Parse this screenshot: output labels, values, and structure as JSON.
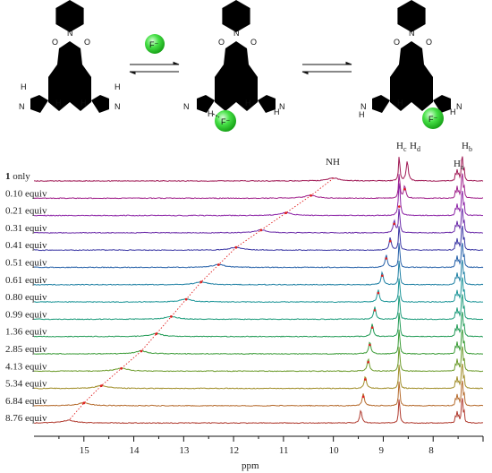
{
  "header": {
    "fluoride_symbol": "F⁻",
    "atoms": {
      "oxygen": "O",
      "nitrogen": "N",
      "hydrogen": "H",
      "fluorine": "F⁻"
    }
  },
  "spectrum": {
    "xlabel": "ppm",
    "x_ticks": [
      15,
      14,
      13,
      12,
      11,
      10,
      9,
      8
    ],
    "peak_labels": {
      "nh": "NH",
      "hc": "H",
      "hc_sub": "c",
      "hd": "H",
      "hd_sub": "d",
      "ha": "H",
      "ha_sub": "a",
      "hb": "H",
      "hb_sub": "b"
    },
    "rows": [
      {
        "bold": "1",
        "rest": " only",
        "color": "#a01a55",
        "nh": 10.0,
        "hd": 8.52
      },
      {
        "bold": "",
        "rest": "0.10 equiv",
        "color": "#a0208a",
        "nh": 10.45,
        "hd": 8.57
      },
      {
        "bold": "",
        "rest": "0.21 equiv",
        "color": "#8c23a6",
        "nh": 10.95,
        "hd": 8.68
      },
      {
        "bold": "",
        "rest": "0.31 equiv",
        "color": "#6a2aa8",
        "nh": 11.45,
        "hd": 8.78
      },
      {
        "bold": "",
        "rest": "0.41 equiv",
        "color": "#3a36a4",
        "nh": 11.95,
        "hd": 8.86
      },
      {
        "bold": "",
        "rest": "0.51 equiv",
        "color": "#2560a8",
        "nh": 12.3,
        "hd": 8.94
      },
      {
        "bold": "",
        "rest": "0.61 equiv",
        "color": "#1d7fa3",
        "nh": 12.65,
        "hd": 9.02
      },
      {
        "bold": "",
        "rest": "0.80 equiv",
        "color": "#1a9497",
        "nh": 12.95,
        "hd": 9.1
      },
      {
        "bold": "",
        "rest": "0.99 equiv",
        "color": "#1c9b7a",
        "nh": 13.25,
        "hd": 9.17
      },
      {
        "bold": "",
        "rest": "1.36 equiv",
        "color": "#229b56",
        "nh": 13.55,
        "hd": 9.22
      },
      {
        "bold": "",
        "rest": "2.85 equiv",
        "color": "#3a9b36",
        "nh": 13.85,
        "hd": 9.27
      },
      {
        "bold": "",
        "rest": "4.13 equiv",
        "color": "#6b9a2a",
        "nh": 14.25,
        "hd": 9.3
      },
      {
        "bold": "",
        "rest": "5.34 equiv",
        "color": "#a08d28",
        "nh": 14.65,
        "hd": 9.36
      },
      {
        "bold": "",
        "rest": "6.84 equiv",
        "color": "#b56a2c",
        "nh": 15.0,
        "hd": 9.4
      },
      {
        "bold": "",
        "rest": "8.76 equiv",
        "color": "#b03a2e",
        "nh": 15.3,
        "hd": 9.45
      }
    ]
  }
}
